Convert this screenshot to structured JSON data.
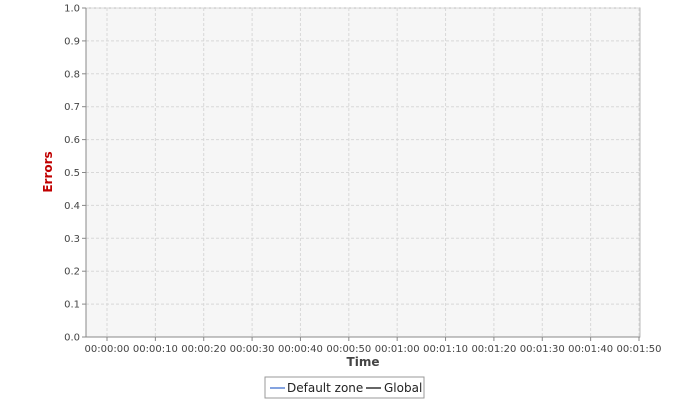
{
  "chart_data": {
    "type": "line",
    "title": "",
    "xlabel": "Time",
    "ylabel": "Errors",
    "xlim": [
      "00:00:00",
      "00:01:50"
    ],
    "ylim": [
      0.0,
      1.0
    ],
    "x_ticks": [
      "00:00:00",
      "00:00:10",
      "00:00:20",
      "00:00:30",
      "00:00:40",
      "00:00:50",
      "00:01:00",
      "00:01:10",
      "00:01:20",
      "00:01:30",
      "00:01:40",
      "00:01:50"
    ],
    "y_ticks": [
      "0.0",
      "0.1",
      "0.2",
      "0.3",
      "0.4",
      "0.5",
      "0.6",
      "0.7",
      "0.8",
      "0.9",
      "1.0"
    ],
    "grid": true,
    "legend_position": "bottom",
    "series": [
      {
        "name": "Default zone",
        "color": "#3366cc",
        "values": []
      },
      {
        "name": "Global",
        "color": "#000000",
        "values": []
      }
    ],
    "colors": {
      "plot_background": "#f6f6f6",
      "grid": "#d8d8d8",
      "ylabel": "#c00000"
    }
  }
}
